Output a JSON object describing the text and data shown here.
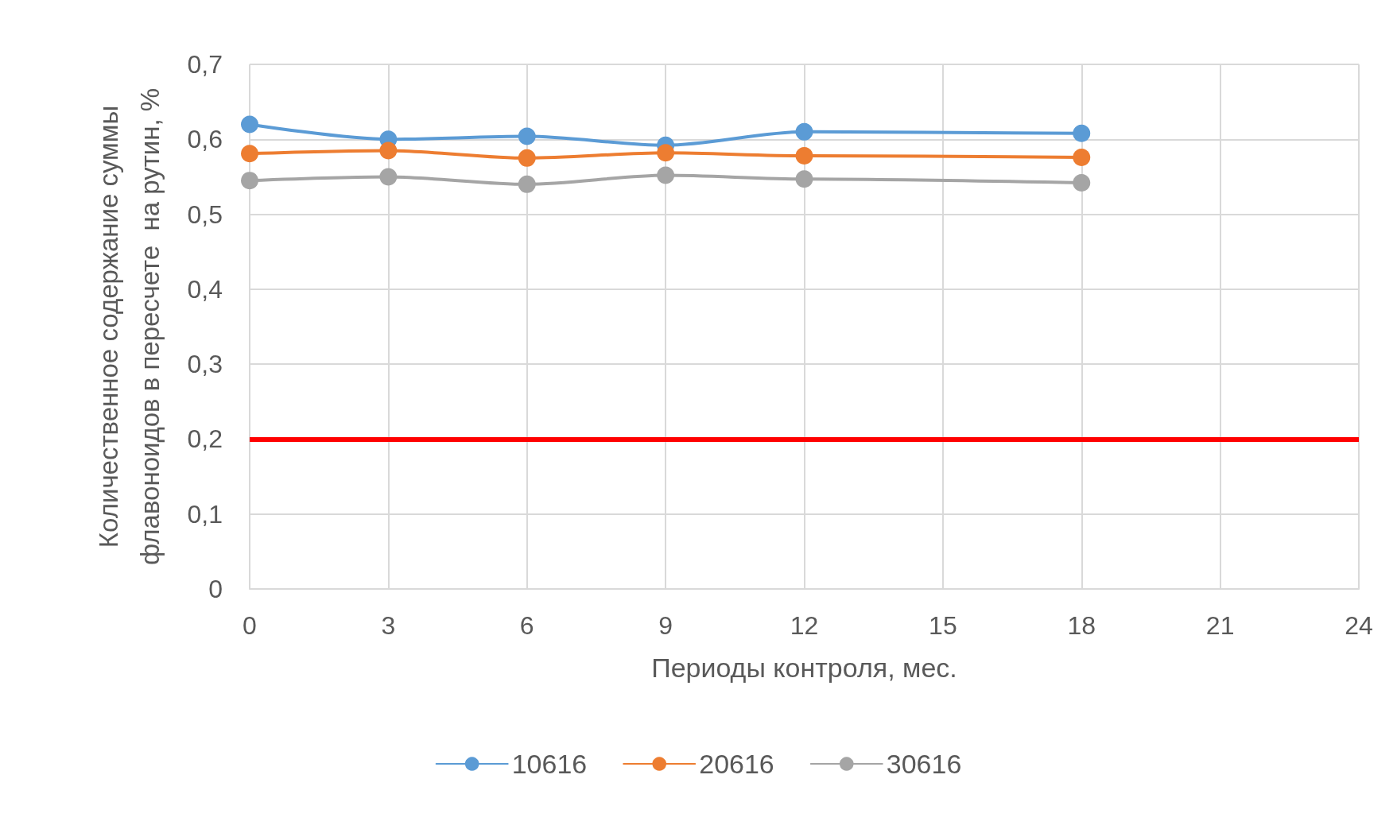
{
  "chart_data": {
    "type": "line",
    "xlabel": "Периоды контроля, мес.",
    "ylabel": "Количественное содержание суммы\nфлавоноидов в пересчете  на рутин, %",
    "x": [
      0,
      3,
      6,
      9,
      12,
      18
    ],
    "series": [
      {
        "name": "10616",
        "color": "#5b9bd5",
        "values": [
          0.62,
          0.6,
          0.604,
          0.592,
          0.61,
          0.608
        ]
      },
      {
        "name": "20616",
        "color": "#ed7d31",
        "values": [
          0.581,
          0.585,
          0.575,
          0.582,
          0.578,
          0.576
        ]
      },
      {
        "name": "30616",
        "color": "#a5a5a5",
        "values": [
          0.545,
          0.55,
          0.54,
          0.552,
          0.547,
          0.542
        ]
      }
    ],
    "ref_lines": [
      {
        "axis": "y",
        "value": 0.2,
        "color": "#ff0000"
      }
    ],
    "xlim": [
      0,
      24
    ],
    "xticks": [
      0,
      3,
      6,
      9,
      12,
      15,
      18,
      21,
      24
    ],
    "ylim": [
      0,
      0.7
    ],
    "yticks": [
      0,
      {
        "value": 0.1,
        "label": "0,1"
      },
      {
        "value": 0.2,
        "label": "0,2"
      },
      {
        "value": 0.3,
        "label": "0,3"
      },
      {
        "value": 0.4,
        "label": "0,4"
      },
      {
        "value": 0.5,
        "label": "0,5"
      },
      {
        "value": 0.6,
        "label": "0,6"
      },
      {
        "value": 0.7,
        "label": "0,7"
      }
    ],
    "grid": true,
    "legend": "bottom",
    "marker": "circle",
    "line_style": "solid"
  }
}
